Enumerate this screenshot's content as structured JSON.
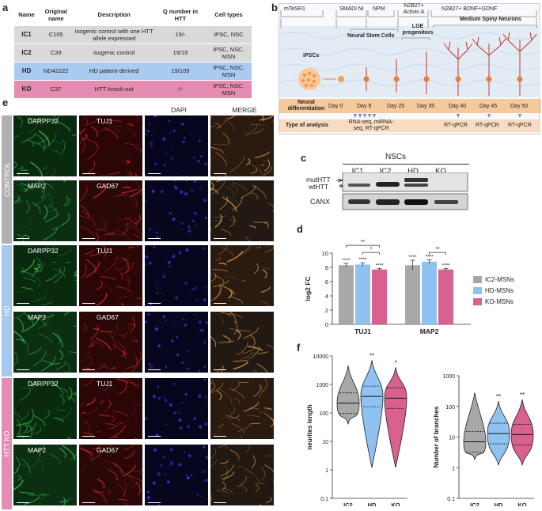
{
  "panels": {
    "a": "a",
    "b": "b",
    "c": "c",
    "d": "d",
    "e": "e",
    "f": "f"
  },
  "table": {
    "headers": [
      "Name",
      "Original name",
      "Description",
      "Q number in HTT",
      "Cell types"
    ],
    "rows": [
      {
        "name": "IC1",
        "orig": "C105",
        "desc": "isogenic control with one HTT allele expressed",
        "q": "19/-",
        "cells": "iPSC, NSC"
      },
      {
        "name": "IC2",
        "orig": "C39",
        "desc": "isogenic control",
        "q": "19/19",
        "cells": "iPSC, NSC, MSN"
      },
      {
        "name": "HD",
        "orig": "ND42222",
        "desc": "HD patient-derived",
        "q": "19/109",
        "cells": "iPSC, NSC, MSN"
      },
      {
        "name": "KO",
        "orig": "C37",
        "desc": "HTT knock-out",
        "q": "-/-",
        "cells": "iPSC, NSC, MSN"
      }
    ]
  },
  "timeline": {
    "media": [
      "mTeSR1",
      "SMADi NI",
      "NPM",
      "N2B27+ Activin A",
      "N2B27+ BDNF+GDNF"
    ],
    "stages": [
      "iPSCs",
      "Neural Stem Cells",
      "LGE progenitors",
      "Medium Spiny Neurons"
    ],
    "row_label": "Neural differentiation",
    "days": [
      "Day 0",
      "Day 9",
      "Day 25",
      "Day 35",
      "Day 40",
      "Day 45",
      "Day 50"
    ],
    "analysis_label": "Type of analysis",
    "analyses": [
      "RNA-seq, miRNA-seq, RT-qPCR",
      "RT-qPCR",
      "RT-qPCR",
      "RT-qPCR"
    ]
  },
  "western": {
    "title": "NSCs",
    "lanes": [
      "IC1",
      "IC2",
      "HD",
      "KO"
    ],
    "bands": [
      "mutHTT",
      "wtHTT"
    ],
    "loading": "CANX"
  },
  "micro": {
    "channels": [
      "DAPI",
      "MERGE"
    ],
    "rows": [
      {
        "labels": [
          "DARPP32",
          "TUJ1"
        ]
      },
      {
        "labels": [
          "MAP2",
          "GAD67"
        ]
      },
      {
        "labels": [
          "DARPP32",
          "TUJ1"
        ]
      },
      {
        "labels": [
          "MAP2",
          "GAD67"
        ]
      },
      {
        "labels": [
          "DARPP32",
          "TUJ1"
        ]
      },
      {
        "labels": [
          "MAP2",
          "GAD67"
        ]
      }
    ],
    "conditions": [
      "CONTROL",
      "HD",
      "HTT KO"
    ],
    "colors": {
      "control": "#b0b0b0",
      "hd": "#a4c8ee",
      "ko": "#e48cb2"
    }
  },
  "colors": {
    "ic2": "#a8a8a8",
    "hd": "#8fc2f0",
    "ko": "#d9608f"
  },
  "chart_data": [
    {
      "type": "bar",
      "categories": [
        "TUJ1",
        "MAP2"
      ],
      "series": [
        {
          "name": "IC2-MSNs",
          "values": [
            8.3,
            8.3
          ],
          "errors": [
            0.25,
            0.7
          ]
        },
        {
          "name": "HD-MSNs",
          "values": [
            8.4,
            8.8
          ],
          "errors": [
            0.25,
            0.25
          ]
        },
        {
          "name": "KO-MSNs",
          "values": [
            7.7,
            7.7
          ],
          "errors": [
            0.15,
            0.15
          ]
        }
      ],
      "significance_labels": [
        [
          "****",
          "****",
          "****"
        ],
        [
          "****",
          "****",
          "****"
        ]
      ],
      "brackets": [
        {
          "group": "TUJ1",
          "label": "**"
        },
        {
          "group": "TUJ1",
          "label": "*"
        },
        {
          "group": "MAP2",
          "label": "**"
        }
      ],
      "ylabel": "log2 FC",
      "ylim": [
        0,
        10
      ],
      "yticks": [
        0,
        2,
        4,
        6,
        8,
        10
      ],
      "legend": "right"
    },
    {
      "type": "violin",
      "categories": [
        "IC2",
        "HD",
        "KO"
      ],
      "ylabel": "neurites length",
      "scale": "log",
      "yticks": [
        "0.1",
        "1",
        "10",
        "100",
        "1000",
        "10000"
      ],
      "significance": [
        "",
        "**",
        "*"
      ],
      "medians": [
        220,
        380,
        330
      ]
    },
    {
      "type": "violin",
      "categories": [
        "IC2",
        "HD",
        "KO"
      ],
      "ylabel": "Number of branches",
      "scale": "log",
      "yticks": [
        "0.1",
        "1",
        "10",
        "100",
        "1000"
      ],
      "significance": [
        "",
        "**",
        "**"
      ],
      "medians": [
        7,
        13,
        12
      ]
    }
  ]
}
